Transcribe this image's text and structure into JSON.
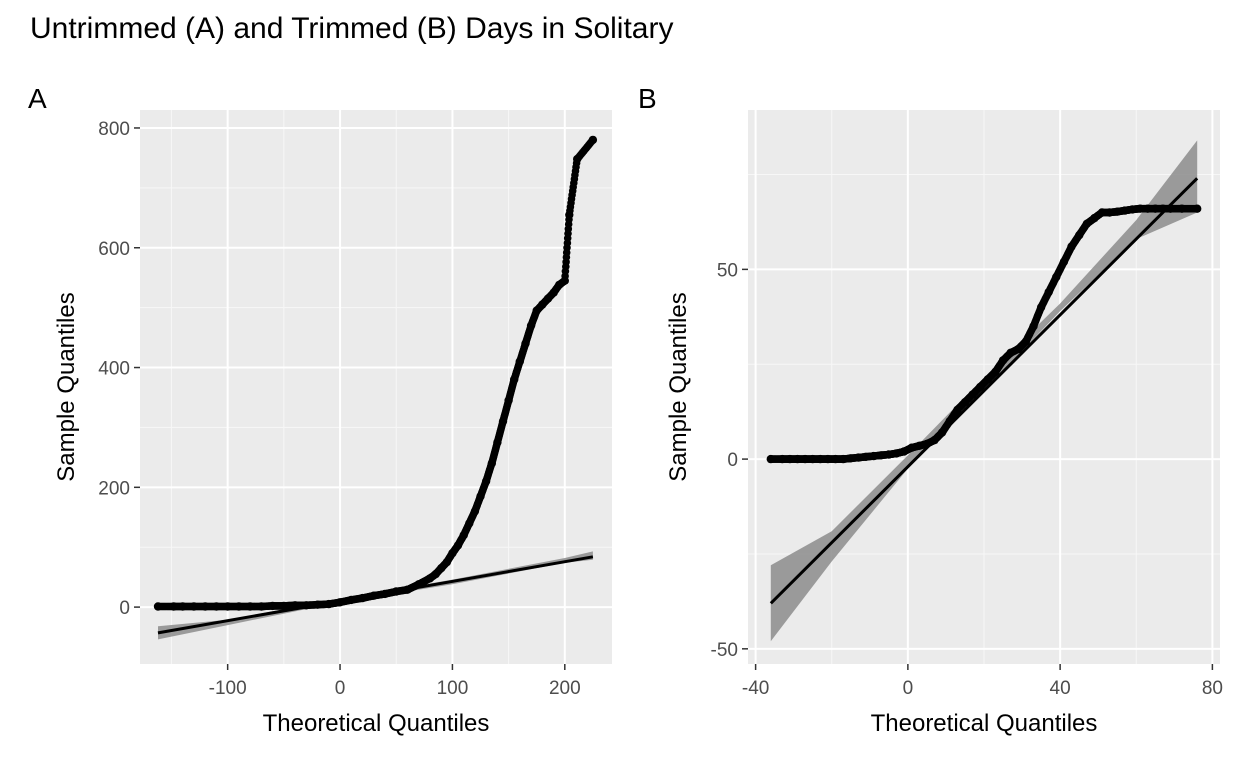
{
  "title": "Untrimmed (A) and Trimmed (B) Days in Solitary",
  "chart_data": [
    {
      "type": "scatter",
      "panel_tag": "A",
      "xlabel": "Theoretical Quantiles",
      "ylabel": "Sample Quantiles",
      "xlim": [
        -178,
        242
      ],
      "ylim": [
        -95,
        830
      ],
      "xticks": [
        -100,
        0,
        100,
        200
      ],
      "xtick_labels": [
        "-100",
        "0",
        "100",
        "200"
      ],
      "yticks": [
        0,
        200,
        400,
        600,
        800
      ],
      "ytick_labels": [
        "0",
        "200",
        "400",
        "600",
        "800"
      ],
      "grid": true,
      "panel_background": "#ebebeb",
      "point_color": "#000000",
      "line_color": "#000000",
      "band_color": "#8c8c8c",
      "points": {
        "x": [
          -162,
          -148,
          -140,
          -130,
          -120,
          -110,
          -100,
          -90,
          -80,
          -70,
          -60,
          -50,
          -40,
          -30,
          -20,
          -10,
          0,
          10,
          20,
          30,
          40,
          50,
          60,
          70,
          80,
          85,
          90,
          95,
          100,
          105,
          110,
          115,
          120,
          125,
          130,
          135,
          140,
          145,
          150,
          155,
          160,
          165,
          170,
          175,
          180,
          185,
          190,
          195,
          200,
          204,
          211,
          225
        ],
        "y": [
          1,
          1,
          1,
          1,
          1,
          1,
          1,
          1,
          1,
          1,
          2,
          2,
          3,
          3,
          4,
          5,
          8,
          12,
          15,
          19,
          22,
          26,
          29,
          38,
          48,
          55,
          65,
          75,
          90,
          103,
          120,
          140,
          160,
          185,
          210,
          240,
          275,
          310,
          345,
          380,
          410,
          440,
          470,
          495,
          505,
          515,
          525,
          538,
          545,
          655,
          748,
          780
        ]
      },
      "line": {
        "x": [
          -162,
          225
        ],
        "y": [
          -43,
          84
        ]
      },
      "band": {
        "x": [
          -162,
          -100,
          0,
          100,
          200,
          225
        ],
        "lower": [
          -54,
          -30,
          8,
          38,
          74,
          79
        ],
        "upper": [
          -32,
          -21,
          14,
          46,
          82,
          93
        ]
      }
    },
    {
      "type": "scatter",
      "panel_tag": "B",
      "xlabel": "Theoretical Quantiles",
      "ylabel": "Sample Quantiles",
      "xlim": [
        -42,
        82
      ],
      "ylim": [
        -54,
        92
      ],
      "xticks": [
        -40,
        0,
        40,
        80
      ],
      "xtick_labels": [
        "-40",
        "0",
        "40",
        "80"
      ],
      "yticks": [
        -50,
        0,
        50
      ],
      "ytick_labels": [
        "-50",
        "0",
        "50"
      ],
      "grid": true,
      "panel_background": "#ebebeb",
      "point_color": "#000000",
      "line_color": "#000000",
      "band_color": "#8c8c8c",
      "points": {
        "x": [
          -36,
          -33,
          -31,
          -29,
          -27,
          -25,
          -23,
          -21,
          -19,
          -17,
          -15,
          -13,
          -11,
          -9,
          -7,
          -5,
          -3,
          -1,
          1,
          3,
          5,
          7,
          9,
          11,
          13,
          15,
          17,
          19,
          21,
          23,
          25,
          27,
          29,
          31,
          33,
          35,
          37,
          39,
          41,
          43,
          45,
          47,
          49,
          51,
          53,
          55,
          57,
          59,
          61,
          63,
          65,
          67,
          69,
          72,
          76
        ],
        "y": [
          0,
          0,
          0,
          0,
          0,
          0,
          0,
          0,
          0,
          0,
          0.2,
          0.4,
          0.6,
          0.8,
          1,
          1.2,
          1.5,
          2,
          3,
          3.5,
          4,
          5,
          7,
          10,
          13,
          15,
          17,
          19,
          21,
          23,
          26,
          28,
          29,
          31,
          35,
          40,
          44,
          48,
          52,
          56,
          59,
          62,
          63.5,
          65,
          65,
          65.2,
          65.5,
          65.8,
          66,
          66,
          66,
          66,
          66,
          66,
          66
        ]
      },
      "line": {
        "x": [
          -36,
          76
        ],
        "y": [
          -38,
          74
        ]
      },
      "band": {
        "x": [
          -36,
          -20,
          0,
          20,
          40,
          60,
          76
        ],
        "lower": [
          -48,
          -27,
          -2.5,
          18,
          39,
          58,
          65
        ],
        "upper": [
          -28,
          -19,
          1,
          21.5,
          41,
          63,
          84
        ]
      }
    }
  ]
}
